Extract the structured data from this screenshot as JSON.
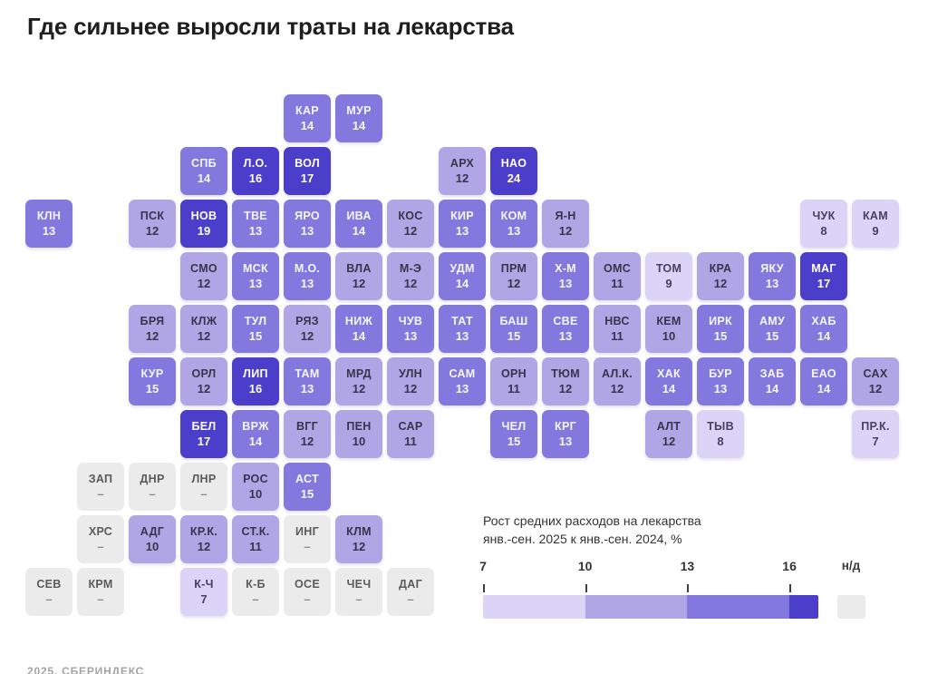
{
  "title": "Где сильнее выросли траты на лекарства",
  "footer": "2025, СБЕРИНДЕКС",
  "colors": {
    "band1": "#dbd4f6",
    "band2": "#b0a6e5",
    "band3": "#8278dd",
    "band4": "#4b3eca",
    "nodata": "#ebebeb"
  },
  "legend": {
    "title_line1": "Рост средних расходов на лекарства",
    "title_line2": "янв.-сен. 2025 к янв.-сен. 2024, %",
    "ticks": [
      "7",
      "10",
      "13",
      "16"
    ],
    "nodata_label": "н/д"
  },
  "chart_data": {
    "type": "heatmap",
    "title": "Где сильнее выросли траты на лекарства",
    "legend_title": "Рост средних расходов на лекарства янв.-сен. 2025 к янв.-сен. 2024, %",
    "scale": {
      "bins": [
        7,
        10,
        13,
        16
      ],
      "unit": "%",
      "nodata_label": "н/д"
    },
    "tiles": [
      {
        "code": "КАР",
        "value": 14,
        "row": 0,
        "col": 5
      },
      {
        "code": "МУР",
        "value": 14,
        "row": 0,
        "col": 6
      },
      {
        "code": "СПБ",
        "value": 14,
        "row": 1,
        "col": 3
      },
      {
        "code": "Л.О.",
        "value": 16,
        "row": 1,
        "col": 4
      },
      {
        "code": "ВОЛ",
        "value": 17,
        "row": 1,
        "col": 5
      },
      {
        "code": "АРХ",
        "value": 12,
        "row": 1,
        "col": 8
      },
      {
        "code": "НАО",
        "value": 24,
        "row": 1,
        "col": 9
      },
      {
        "code": "КЛН",
        "value": 13,
        "row": 2,
        "col": 0
      },
      {
        "code": "ПСК",
        "value": 12,
        "row": 2,
        "col": 2
      },
      {
        "code": "НОВ",
        "value": 19,
        "row": 2,
        "col": 3
      },
      {
        "code": "ТВЕ",
        "value": 13,
        "row": 2,
        "col": 4
      },
      {
        "code": "ЯРО",
        "value": 13,
        "row": 2,
        "col": 5
      },
      {
        "code": "ИВА",
        "value": 14,
        "row": 2,
        "col": 6
      },
      {
        "code": "КОС",
        "value": 12,
        "row": 2,
        "col": 7
      },
      {
        "code": "КИР",
        "value": 13,
        "row": 2,
        "col": 8
      },
      {
        "code": "КОМ",
        "value": 13,
        "row": 2,
        "col": 9
      },
      {
        "code": "Я-Н",
        "value": 12,
        "row": 2,
        "col": 10
      },
      {
        "code": "ЧУК",
        "value": 8,
        "row": 2,
        "col": 15
      },
      {
        "code": "КАМ",
        "value": 9,
        "row": 2,
        "col": 16
      },
      {
        "code": "СМО",
        "value": 12,
        "row": 3,
        "col": 3
      },
      {
        "code": "МСК",
        "value": 13,
        "row": 3,
        "col": 4
      },
      {
        "code": "М.О.",
        "value": 13,
        "row": 3,
        "col": 5
      },
      {
        "code": "ВЛА",
        "value": 12,
        "row": 3,
        "col": 6
      },
      {
        "code": "М-Э",
        "value": 12,
        "row": 3,
        "col": 7
      },
      {
        "code": "УДМ",
        "value": 14,
        "row": 3,
        "col": 8
      },
      {
        "code": "ПРМ",
        "value": 12,
        "row": 3,
        "col": 9
      },
      {
        "code": "Х-М",
        "value": 13,
        "row": 3,
        "col": 10
      },
      {
        "code": "ОМС",
        "value": 11,
        "row": 3,
        "col": 11
      },
      {
        "code": "ТОМ",
        "value": 9,
        "row": 3,
        "col": 12
      },
      {
        "code": "КРА",
        "value": 12,
        "row": 3,
        "col": 13
      },
      {
        "code": "ЯКУ",
        "value": 13,
        "row": 3,
        "col": 14
      },
      {
        "code": "МАГ",
        "value": 17,
        "row": 3,
        "col": 15
      },
      {
        "code": "БРЯ",
        "value": 12,
        "row": 4,
        "col": 2
      },
      {
        "code": "КЛЖ",
        "value": 12,
        "row": 4,
        "col": 3
      },
      {
        "code": "ТУЛ",
        "value": 15,
        "row": 4,
        "col": 4
      },
      {
        "code": "РЯЗ",
        "value": 12,
        "row": 4,
        "col": 5
      },
      {
        "code": "НИЖ",
        "value": 14,
        "row": 4,
        "col": 6
      },
      {
        "code": "ЧУВ",
        "value": 13,
        "row": 4,
        "col": 7
      },
      {
        "code": "ТАТ",
        "value": 13,
        "row": 4,
        "col": 8
      },
      {
        "code": "БАШ",
        "value": 15,
        "row": 4,
        "col": 9
      },
      {
        "code": "СВЕ",
        "value": 13,
        "row": 4,
        "col": 10
      },
      {
        "code": "НВС",
        "value": 11,
        "row": 4,
        "col": 11
      },
      {
        "code": "КЕМ",
        "value": 10,
        "row": 4,
        "col": 12
      },
      {
        "code": "ИРК",
        "value": 15,
        "row": 4,
        "col": 13
      },
      {
        "code": "АМУ",
        "value": 15,
        "row": 4,
        "col": 14
      },
      {
        "code": "ХАБ",
        "value": 14,
        "row": 4,
        "col": 15
      },
      {
        "code": "КУР",
        "value": 15,
        "row": 5,
        "col": 2
      },
      {
        "code": "ОРЛ",
        "value": 12,
        "row": 5,
        "col": 3
      },
      {
        "code": "ЛИП",
        "value": 16,
        "row": 5,
        "col": 4
      },
      {
        "code": "ТАМ",
        "value": 13,
        "row": 5,
        "col": 5
      },
      {
        "code": "МРД",
        "value": 12,
        "row": 5,
        "col": 6
      },
      {
        "code": "УЛН",
        "value": 12,
        "row": 5,
        "col": 7
      },
      {
        "code": "САМ",
        "value": 13,
        "row": 5,
        "col": 8
      },
      {
        "code": "ОРН",
        "value": 11,
        "row": 5,
        "col": 9
      },
      {
        "code": "ТЮМ",
        "value": 12,
        "row": 5,
        "col": 10
      },
      {
        "code": "АЛ.К.",
        "value": 12,
        "row": 5,
        "col": 11
      },
      {
        "code": "ХАК",
        "value": 14,
        "row": 5,
        "col": 12
      },
      {
        "code": "БУР",
        "value": 13,
        "row": 5,
        "col": 13
      },
      {
        "code": "ЗАБ",
        "value": 14,
        "row": 5,
        "col": 14
      },
      {
        "code": "ЕАО",
        "value": 14,
        "row": 5,
        "col": 15
      },
      {
        "code": "САХ",
        "value": 12,
        "row": 5,
        "col": 16
      },
      {
        "code": "БЕЛ",
        "value": 17,
        "row": 6,
        "col": 3
      },
      {
        "code": "ВРЖ",
        "value": 14,
        "row": 6,
        "col": 4
      },
      {
        "code": "ВГГ",
        "value": 12,
        "row": 6,
        "col": 5
      },
      {
        "code": "ПЕН",
        "value": 10,
        "row": 6,
        "col": 6
      },
      {
        "code": "САР",
        "value": 11,
        "row": 6,
        "col": 7
      },
      {
        "code": "ЧЕЛ",
        "value": 15,
        "row": 6,
        "col": 9
      },
      {
        "code": "КРГ",
        "value": 13,
        "row": 6,
        "col": 10
      },
      {
        "code": "АЛТ",
        "value": 12,
        "row": 6,
        "col": 12
      },
      {
        "code": "ТЫВ",
        "value": 8,
        "row": 6,
        "col": 13
      },
      {
        "code": "ПР.К.",
        "value": 7,
        "row": 6,
        "col": 16
      },
      {
        "code": "ЗАП",
        "value": null,
        "row": 7,
        "col": 1
      },
      {
        "code": "ДНР",
        "value": null,
        "row": 7,
        "col": 2
      },
      {
        "code": "ЛНР",
        "value": null,
        "row": 7,
        "col": 3
      },
      {
        "code": "РОС",
        "value": 10,
        "row": 7,
        "col": 4
      },
      {
        "code": "АСТ",
        "value": 15,
        "row": 7,
        "col": 5
      },
      {
        "code": "ХРС",
        "value": null,
        "row": 8,
        "col": 1
      },
      {
        "code": "АДГ",
        "value": 10,
        "row": 8,
        "col": 2
      },
      {
        "code": "КР.К.",
        "value": 12,
        "row": 8,
        "col": 3
      },
      {
        "code": "СТ.К.",
        "value": 11,
        "row": 8,
        "col": 4
      },
      {
        "code": "ИНГ",
        "value": null,
        "row": 8,
        "col": 5
      },
      {
        "code": "КЛМ",
        "value": 12,
        "row": 8,
        "col": 6
      },
      {
        "code": "СЕВ",
        "value": null,
        "row": 9,
        "col": 0
      },
      {
        "code": "КРМ",
        "value": null,
        "row": 9,
        "col": 1
      },
      {
        "code": "К-Ч",
        "value": 7,
        "row": 9,
        "col": 3
      },
      {
        "code": "К-Б",
        "value": null,
        "row": 9,
        "col": 4
      },
      {
        "code": "ОСЕ",
        "value": null,
        "row": 9,
        "col": 5
      },
      {
        "code": "ЧЕЧ",
        "value": null,
        "row": 9,
        "col": 6
      },
      {
        "code": "ДАГ",
        "value": null,
        "row": 9,
        "col": 7
      }
    ]
  }
}
